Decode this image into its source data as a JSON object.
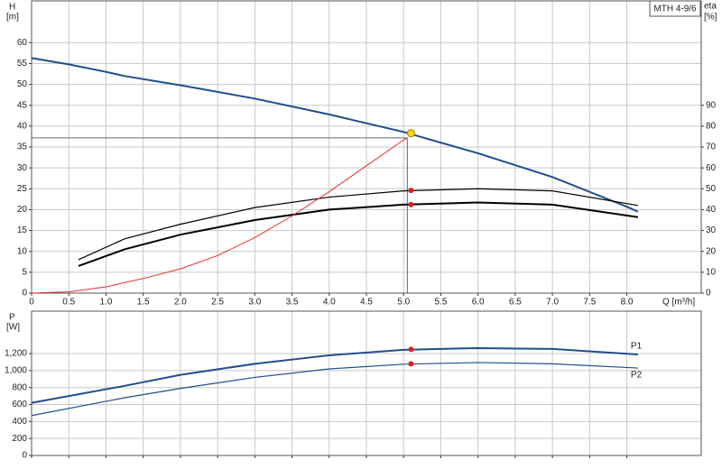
{
  "chart_data": [
    {
      "type": "line",
      "title": "MTH 4-9/6",
      "ylabel": "H",
      "yunit": "[m]",
      "y2label": "eta",
      "y2unit": "[%]",
      "xlabel": "Q [m³/h]",
      "xlim": [
        0,
        9
      ],
      "xticks": [
        0,
        0.5,
        {
          "value": 1,
          "label": "1.0"
        },
        1.5,
        {
          "value": 2,
          "label": "2.0"
        },
        2.5,
        {
          "value": 3,
          "label": "3.0"
        },
        3.5,
        {
          "value": 4,
          "label": "4.0"
        },
        4.5,
        {
          "value": 5,
          "label": "5.0"
        },
        5.5,
        {
          "value": 6,
          "label": "6.0"
        },
        6.5,
        {
          "value": 7,
          "label": "7.0"
        },
        7.5,
        {
          "value": 8,
          "label": "8.0"
        }
      ],
      "ylim": [
        0,
        70
      ],
      "yticks": [
        0,
        5,
        10,
        15,
        20,
        25,
        30,
        35,
        40,
        45,
        50,
        55,
        60
      ],
      "y2lim": [
        0,
        140
      ],
      "y2ticks": [
        0,
        10,
        20,
        30,
        40,
        50,
        60,
        70,
        80,
        90
      ],
      "grid": true,
      "series": [
        {
          "color": "#1f4e8c",
          "width": 2,
          "x": [
            0,
            0.5,
            1,
            1.25,
            2,
            3,
            4,
            5,
            6,
            7,
            8,
            8.15
          ],
          "values": [
            56.3,
            54.8,
            53,
            52,
            49.8,
            46.6,
            42.8,
            38.6,
            33.5,
            27.8,
            20.7,
            19.5
          ]
        },
        {
          "color": "#000000",
          "width": 1.2,
          "axis": "y2",
          "x": [
            0.63,
            1.25,
            2,
            3,
            4,
            5,
            6,
            7,
            8.15
          ],
          "values": [
            16,
            26,
            33,
            41,
            46,
            49,
            50,
            49,
            42
          ]
        },
        {
          "color": "#000000",
          "width": 2,
          "axis": "y2",
          "x": [
            0.63,
            1.25,
            2,
            3,
            4,
            5,
            6,
            7,
            8.15
          ],
          "values": [
            13,
            21,
            28,
            35,
            40,
            42.4,
            43.4,
            42.4,
            36.4
          ]
        },
        {
          "color": "#e03030",
          "width": 1,
          "x": [
            0,
            0.5,
            1,
            1.5,
            2,
            2.5,
            3,
            3.5,
            4,
            4.5,
            5,
            5.05
          ],
          "values": [
            0,
            0.3,
            1.5,
            3.5,
            5.8,
            9,
            13.3,
            18.5,
            24.3,
            30.5,
            36.7,
            37.2
          ]
        }
      ],
      "points": [
        {
          "x": 5.1,
          "y": 38.3,
          "color": "#ffd400"
        },
        {
          "x": 5.1,
          "y": 49.2,
          "color": "#e02020",
          "axis": "y2"
        },
        {
          "x": 5.1,
          "y": 42.4,
          "color": "#e02020",
          "axis": "y2"
        }
      ],
      "duty_point": {
        "x": 5.05,
        "y": 37.2
      }
    },
    {
      "type": "line",
      "ylabel": "P",
      "yunit": "[W]",
      "xlim": [
        0,
        9
      ],
      "xticks": [
        0,
        0.5,
        1,
        1.5,
        2,
        2.5,
        3,
        3.5,
        4,
        4.5,
        5,
        5.5,
        6,
        6.5,
        7,
        7.5,
        8
      ],
      "xtick_labels": false,
      "ylim": [
        0,
        1700
      ],
      "yticks": [
        0,
        200,
        400,
        600,
        800,
        {
          "value": 1000,
          "label": "1,000"
        },
        {
          "value": 1200,
          "label": "1,200"
        }
      ],
      "grid": true,
      "series": [
        {
          "name": "P1",
          "color": "#1f4e8c",
          "width": 2,
          "x": [
            0,
            1.25,
            2,
            3,
            4,
            5,
            6,
            7,
            8.15
          ],
          "values": [
            620,
            820,
            950,
            1080,
            1180,
            1245,
            1265,
            1255,
            1190
          ]
        },
        {
          "name": "P2",
          "color": "#1f4e8c",
          "width": 1.2,
          "x": [
            0,
            1.25,
            2,
            3,
            4,
            5,
            6,
            7,
            8.15
          ],
          "values": [
            470,
            680,
            790,
            920,
            1020,
            1075,
            1095,
            1080,
            1030
          ]
        }
      ],
      "points": [
        {
          "x": 5.1,
          "y": 1250,
          "color": "#e02020"
        },
        {
          "x": 5.1,
          "y": 1080,
          "color": "#e02020"
        }
      ]
    }
  ]
}
